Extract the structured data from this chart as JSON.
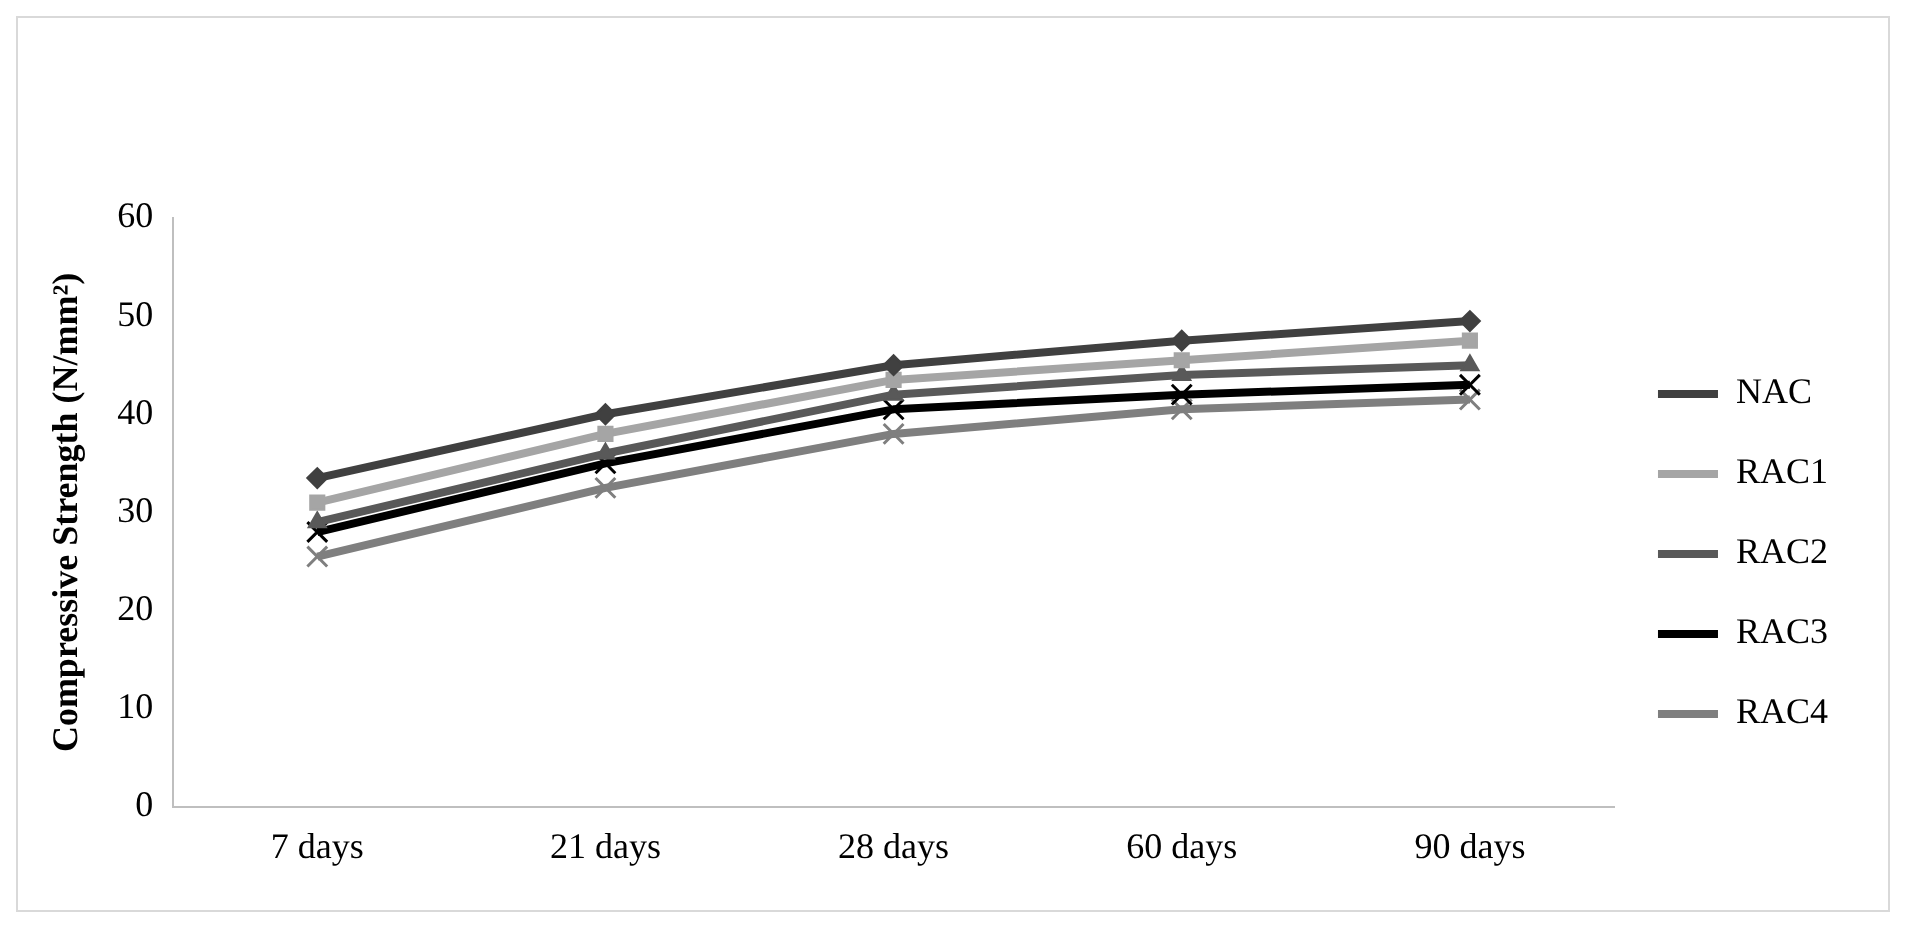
{
  "chart_data": {
    "type": "line",
    "ylabel": "Compressive Strength (N/mm²)",
    "categories": [
      "7 days",
      "21 days",
      "28 days",
      "60 days",
      "90 days"
    ],
    "series": [
      {
        "name": "NAC",
        "color": "#404040",
        "marker": "diamond",
        "values": [
          33.5,
          40,
          45,
          47.5,
          49.5
        ]
      },
      {
        "name": "RAC1",
        "color": "#a5a5a5",
        "marker": "square",
        "values": [
          31,
          38,
          43.5,
          45.5,
          47.5
        ]
      },
      {
        "name": "RAC2",
        "color": "#595959",
        "marker": "triangle",
        "values": [
          29,
          36,
          42,
          44,
          45
        ]
      },
      {
        "name": "RAC3",
        "color": "#000000",
        "marker": "cross",
        "values": [
          28,
          35,
          40.5,
          42,
          43
        ]
      },
      {
        "name": "RAC4",
        "color": "#7f7f7f",
        "marker": "cross",
        "values": [
          25.5,
          32.5,
          38,
          40.5,
          41.5
        ]
      }
    ],
    "ylim": [
      0,
      60
    ],
    "yticks": [
      0,
      10,
      20,
      30,
      40,
      50,
      60
    ],
    "grid": false,
    "legend": "right"
  }
}
